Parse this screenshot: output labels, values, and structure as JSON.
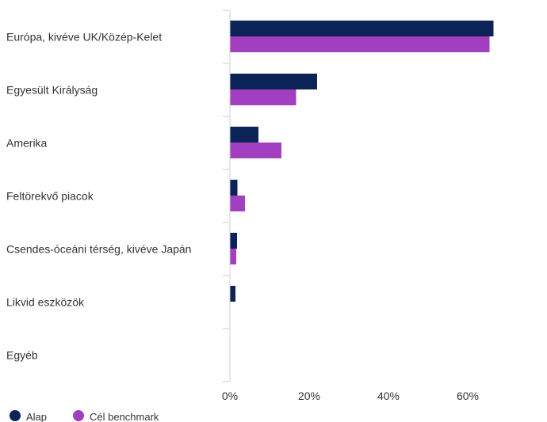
{
  "chart_data": {
    "type": "bar",
    "orientation": "horizontal",
    "categories": [
      "Európa, kivéve UK/Közép-Kelet",
      "Egyesült Királyság",
      "Amerika",
      "Feltörekvő piacok",
      "Csendes-óceáni térség, kivéve Japán",
      "Likvid eszközök",
      "Egyéb"
    ],
    "series": [
      {
        "name": "Alap",
        "color": "#0b2357",
        "values": [
          66.4,
          21.9,
          7.1,
          1.8,
          1.7,
          1.3,
          0
        ]
      },
      {
        "name": "Cél benchmark",
        "color": "#a23fc0",
        "values": [
          65.4,
          16.6,
          12.9,
          3.7,
          1.5,
          0,
          0
        ]
      }
    ],
    "x_ticks": [
      "0%",
      "20%",
      "40%",
      "60%"
    ],
    "x_tick_values": [
      0,
      20,
      40,
      60
    ],
    "xlim": [
      0,
      80
    ],
    "grid": false,
    "legend_position": "bottom-left",
    "title": "",
    "xlabel": "",
    "ylabel": ""
  }
}
